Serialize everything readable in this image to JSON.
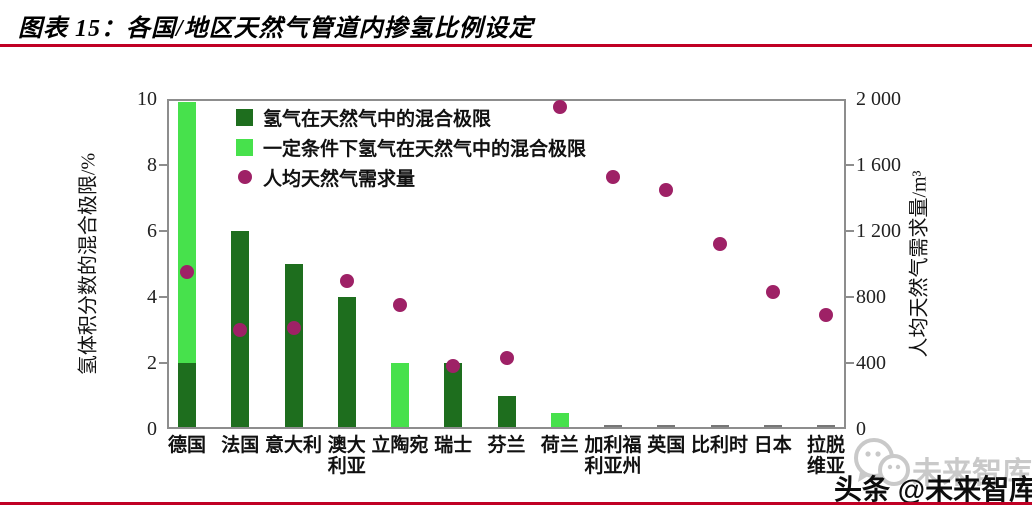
{
  "page": {
    "title": "图表 15：各国/地区天然气管道内掺氢比例设定",
    "accent_color": "#c00024",
    "watermark": {
      "gray_text": "未来智库",
      "black_text": "头条 @未来智库"
    }
  },
  "chart_data": {
    "type": "bar",
    "title": "各国/地区天然气管道内掺氢比例设定",
    "categories": [
      "德国",
      "法国",
      "意大利",
      "澳大利亚",
      "立陶宛",
      "瑞士",
      "芬兰",
      "荷兰",
      "加利福利亚州",
      "英国",
      "比利时",
      "日本",
      "拉脱维亚"
    ],
    "category_label_lines": [
      [
        "德国"
      ],
      [
        "法国"
      ],
      [
        "意大利"
      ],
      [
        "澳大",
        "利亚"
      ],
      [
        "立陶宛"
      ],
      [
        "瑞士"
      ],
      [
        "芬兰"
      ],
      [
        "荷兰"
      ],
      [
        "加利福",
        "利亚州"
      ],
      [
        "英国"
      ],
      [
        "比利时"
      ],
      [
        "日本"
      ],
      [
        "拉脱",
        "维亚"
      ]
    ],
    "series": [
      {
        "name": "氢气在天然气中的混合极限",
        "type": "bar",
        "axis": "left",
        "color": "#1e6e1e",
        "values": [
          2,
          6,
          5,
          4,
          0,
          2,
          1,
          0,
          0,
          0,
          0,
          0,
          0
        ]
      },
      {
        "name": "一定条件下氢气在天然气中的混合极限",
        "type": "bar",
        "axis": "left",
        "color": "#47e14c",
        "values": [
          9.9,
          0,
          0,
          0,
          2,
          0,
          0,
          0.5,
          0,
          0,
          0,
          0,
          0
        ]
      },
      {
        "name": "人均天然气需求量",
        "type": "scatter",
        "axis": "right",
        "color": "#9e2166",
        "values": [
          950,
          600,
          610,
          900,
          750,
          380,
          430,
          1950,
          1530,
          1450,
          1120,
          830,
          690
        ]
      }
    ],
    "left_axis": {
      "label": "氢体积分数的混合极限/%",
      "min": 0,
      "max": 10,
      "ticks": [
        0,
        2,
        4,
        6,
        8,
        10
      ]
    },
    "right_axis": {
      "label": "人均天然气需求量/m³",
      "min": 0,
      "max": 2000,
      "tick_labels": [
        "0",
        "400",
        "800",
        "1 200",
        "1 600",
        "2 000"
      ],
      "tick_values": [
        0,
        400,
        800,
        1200,
        1600,
        2000
      ]
    },
    "legend_position": "top-left-inside",
    "grid": false,
    "frame_color": "#8d8d8d"
  }
}
